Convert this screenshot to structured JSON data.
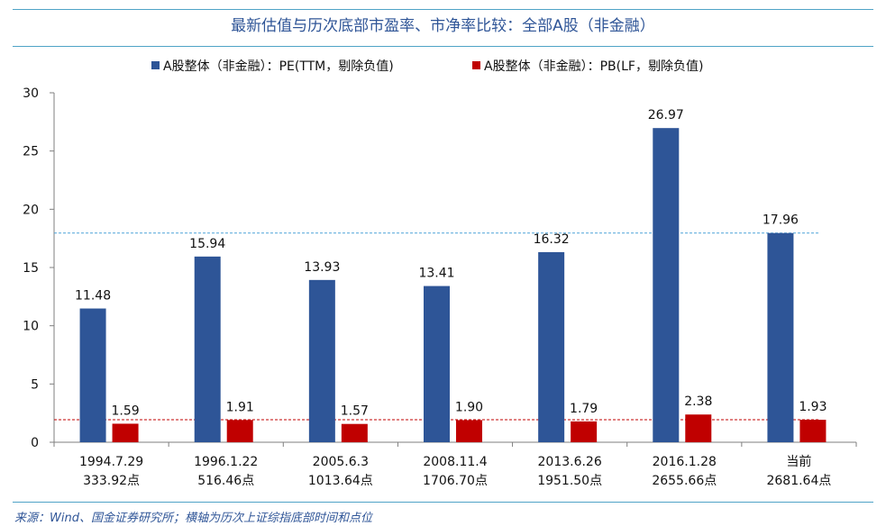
{
  "title": "最新估值与历次底部市盈率、市净率比较：全部A股（非金融）",
  "source": "来源：Wind、国金证券研究所；横轴为历次上证综指底部时间和点位",
  "chart_data": {
    "type": "bar",
    "categories": [
      [
        "1994.7.29",
        "333.92点"
      ],
      [
        "1996.1.22",
        "516.46点"
      ],
      [
        "2005.6.3",
        "1013.64点"
      ],
      [
        "2008.11.4",
        "1706.70点"
      ],
      [
        "2013.6.26",
        "1951.50点"
      ],
      [
        "2016.1.28",
        "2655.66点"
      ],
      [
        "当前",
        "2681.64点"
      ]
    ],
    "series": [
      {
        "name": "A股整体（非金融）：PE(TTM，剔除负值)",
        "color": "#2e5597",
        "values": [
          11.48,
          15.94,
          13.93,
          13.41,
          16.32,
          26.97,
          17.96
        ],
        "labels": [
          "11.48",
          "15.94",
          "13.93",
          "13.41",
          "16.32",
          "26.97",
          "17.96"
        ]
      },
      {
        "name": "A股整体（非金融）：PB(LF，剔除负值)",
        "color": "#c00000",
        "values": [
          1.59,
          1.91,
          1.57,
          1.9,
          1.79,
          2.38,
          1.93
        ],
        "labels": [
          "1.59",
          "1.91",
          "1.57",
          "1.90",
          "1.79",
          "2.38",
          "1.93"
        ]
      }
    ],
    "reference_lines": [
      {
        "value": 17.96,
        "color": "#4fa3d8",
        "style": "dashed"
      },
      {
        "value": 1.93,
        "color": "#c00000",
        "style": "dashed"
      }
    ],
    "ylim": [
      0,
      30
    ],
    "yticks": [
      "0",
      "5",
      "10",
      "15",
      "20",
      "25",
      "30"
    ],
    "ytick_values": [
      0,
      5,
      10,
      15,
      20,
      25,
      30
    ],
    "grid": false,
    "legend_position": "top"
  }
}
